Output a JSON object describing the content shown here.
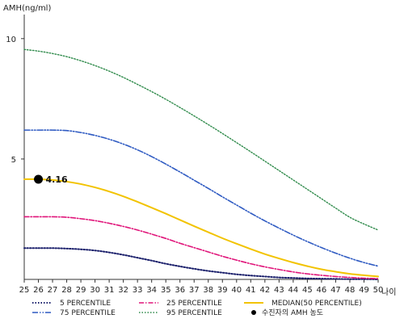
{
  "chart_data": {
    "type": "line",
    "ylabel": "AMH(ng/ml)",
    "xlabel": "나이",
    "xlim": [
      25,
      50
    ],
    "ylim": [
      0,
      11
    ],
    "y_ticks": [
      5,
      10
    ],
    "x": [
      25,
      26,
      27,
      28,
      29,
      30,
      31,
      32,
      33,
      34,
      35,
      36,
      37,
      38,
      39,
      40,
      41,
      42,
      43,
      44,
      45,
      46,
      47,
      48,
      49,
      50
    ],
    "grid": false,
    "legend_position": "bottom",
    "series": [
      {
        "name": "5 PERCENTILE",
        "color": "#1a1f6b",
        "dash": "1.5,2",
        "width": 2,
        "values": [
          1.3,
          1.3,
          1.3,
          1.28,
          1.25,
          1.2,
          1.12,
          1.02,
          0.9,
          0.78,
          0.65,
          0.54,
          0.44,
          0.35,
          0.28,
          0.21,
          0.16,
          0.12,
          0.08,
          0.06,
          0.04,
          0.03,
          0.02,
          0.01,
          0.01,
          0.0
        ]
      },
      {
        "name": "25 PERCENTILE",
        "color": "#e0157a",
        "dash": "6,2,1.5,2",
        "width": 1.6,
        "values": [
          2.6,
          2.6,
          2.6,
          2.58,
          2.52,
          2.44,
          2.33,
          2.2,
          2.05,
          1.88,
          1.7,
          1.5,
          1.32,
          1.14,
          0.96,
          0.8,
          0.65,
          0.52,
          0.41,
          0.31,
          0.23,
          0.17,
          0.12,
          0.08,
          0.05,
          0.03
        ]
      },
      {
        "name": "MEDIAN(50 PERCENTILE)",
        "color": "#f2c300",
        "dash": "",
        "width": 2,
        "values": [
          4.16,
          4.16,
          4.13,
          4.06,
          3.96,
          3.82,
          3.65,
          3.45,
          3.22,
          2.98,
          2.73,
          2.47,
          2.21,
          1.96,
          1.71,
          1.48,
          1.26,
          1.05,
          0.87,
          0.7,
          0.55,
          0.42,
          0.32,
          0.23,
          0.17,
          0.12
        ]
      },
      {
        "name": "75 PERCENTILE",
        "color": "#2e5ac2",
        "dash": "7,2,1.5,2,1.5,2",
        "width": 1.6,
        "values": [
          6.2,
          6.2,
          6.2,
          6.18,
          6.1,
          5.98,
          5.82,
          5.62,
          5.38,
          5.1,
          4.79,
          4.46,
          4.12,
          3.78,
          3.43,
          3.09,
          2.75,
          2.43,
          2.13,
          1.84,
          1.57,
          1.32,
          1.09,
          0.88,
          0.7,
          0.55
        ]
      },
      {
        "name": "95 PERCENTILE",
        "color": "#2e8a4a",
        "dash": "1.5,2",
        "width": 1.4,
        "values": [
          9.55,
          9.48,
          9.38,
          9.25,
          9.08,
          8.88,
          8.65,
          8.39,
          8.1,
          7.8,
          7.48,
          7.14,
          6.79,
          6.43,
          6.06,
          5.68,
          5.3,
          4.91,
          4.52,
          4.13,
          3.74,
          3.35,
          2.96,
          2.58,
          2.3,
          2.05
        ]
      }
    ],
    "marker": {
      "legend_label": "수진자의 AMH 농도",
      "x": 26,
      "y": 4.16,
      "label": "4.16",
      "color": "#000000"
    },
    "legend": [
      {
        "name": "5 PERCENTILE",
        "series_index": 0
      },
      {
        "name": "25 PERCENTILE",
        "series_index": 1
      },
      {
        "name": "MEDIAN(50 PERCENTILE)",
        "series_index": 2
      },
      {
        "name": "75 PERCENTILE",
        "series_index": 3
      },
      {
        "name": "95 PERCENTILE",
        "series_index": 4
      },
      {
        "name": "수진자의 AMH 농도",
        "marker": true
      }
    ]
  }
}
